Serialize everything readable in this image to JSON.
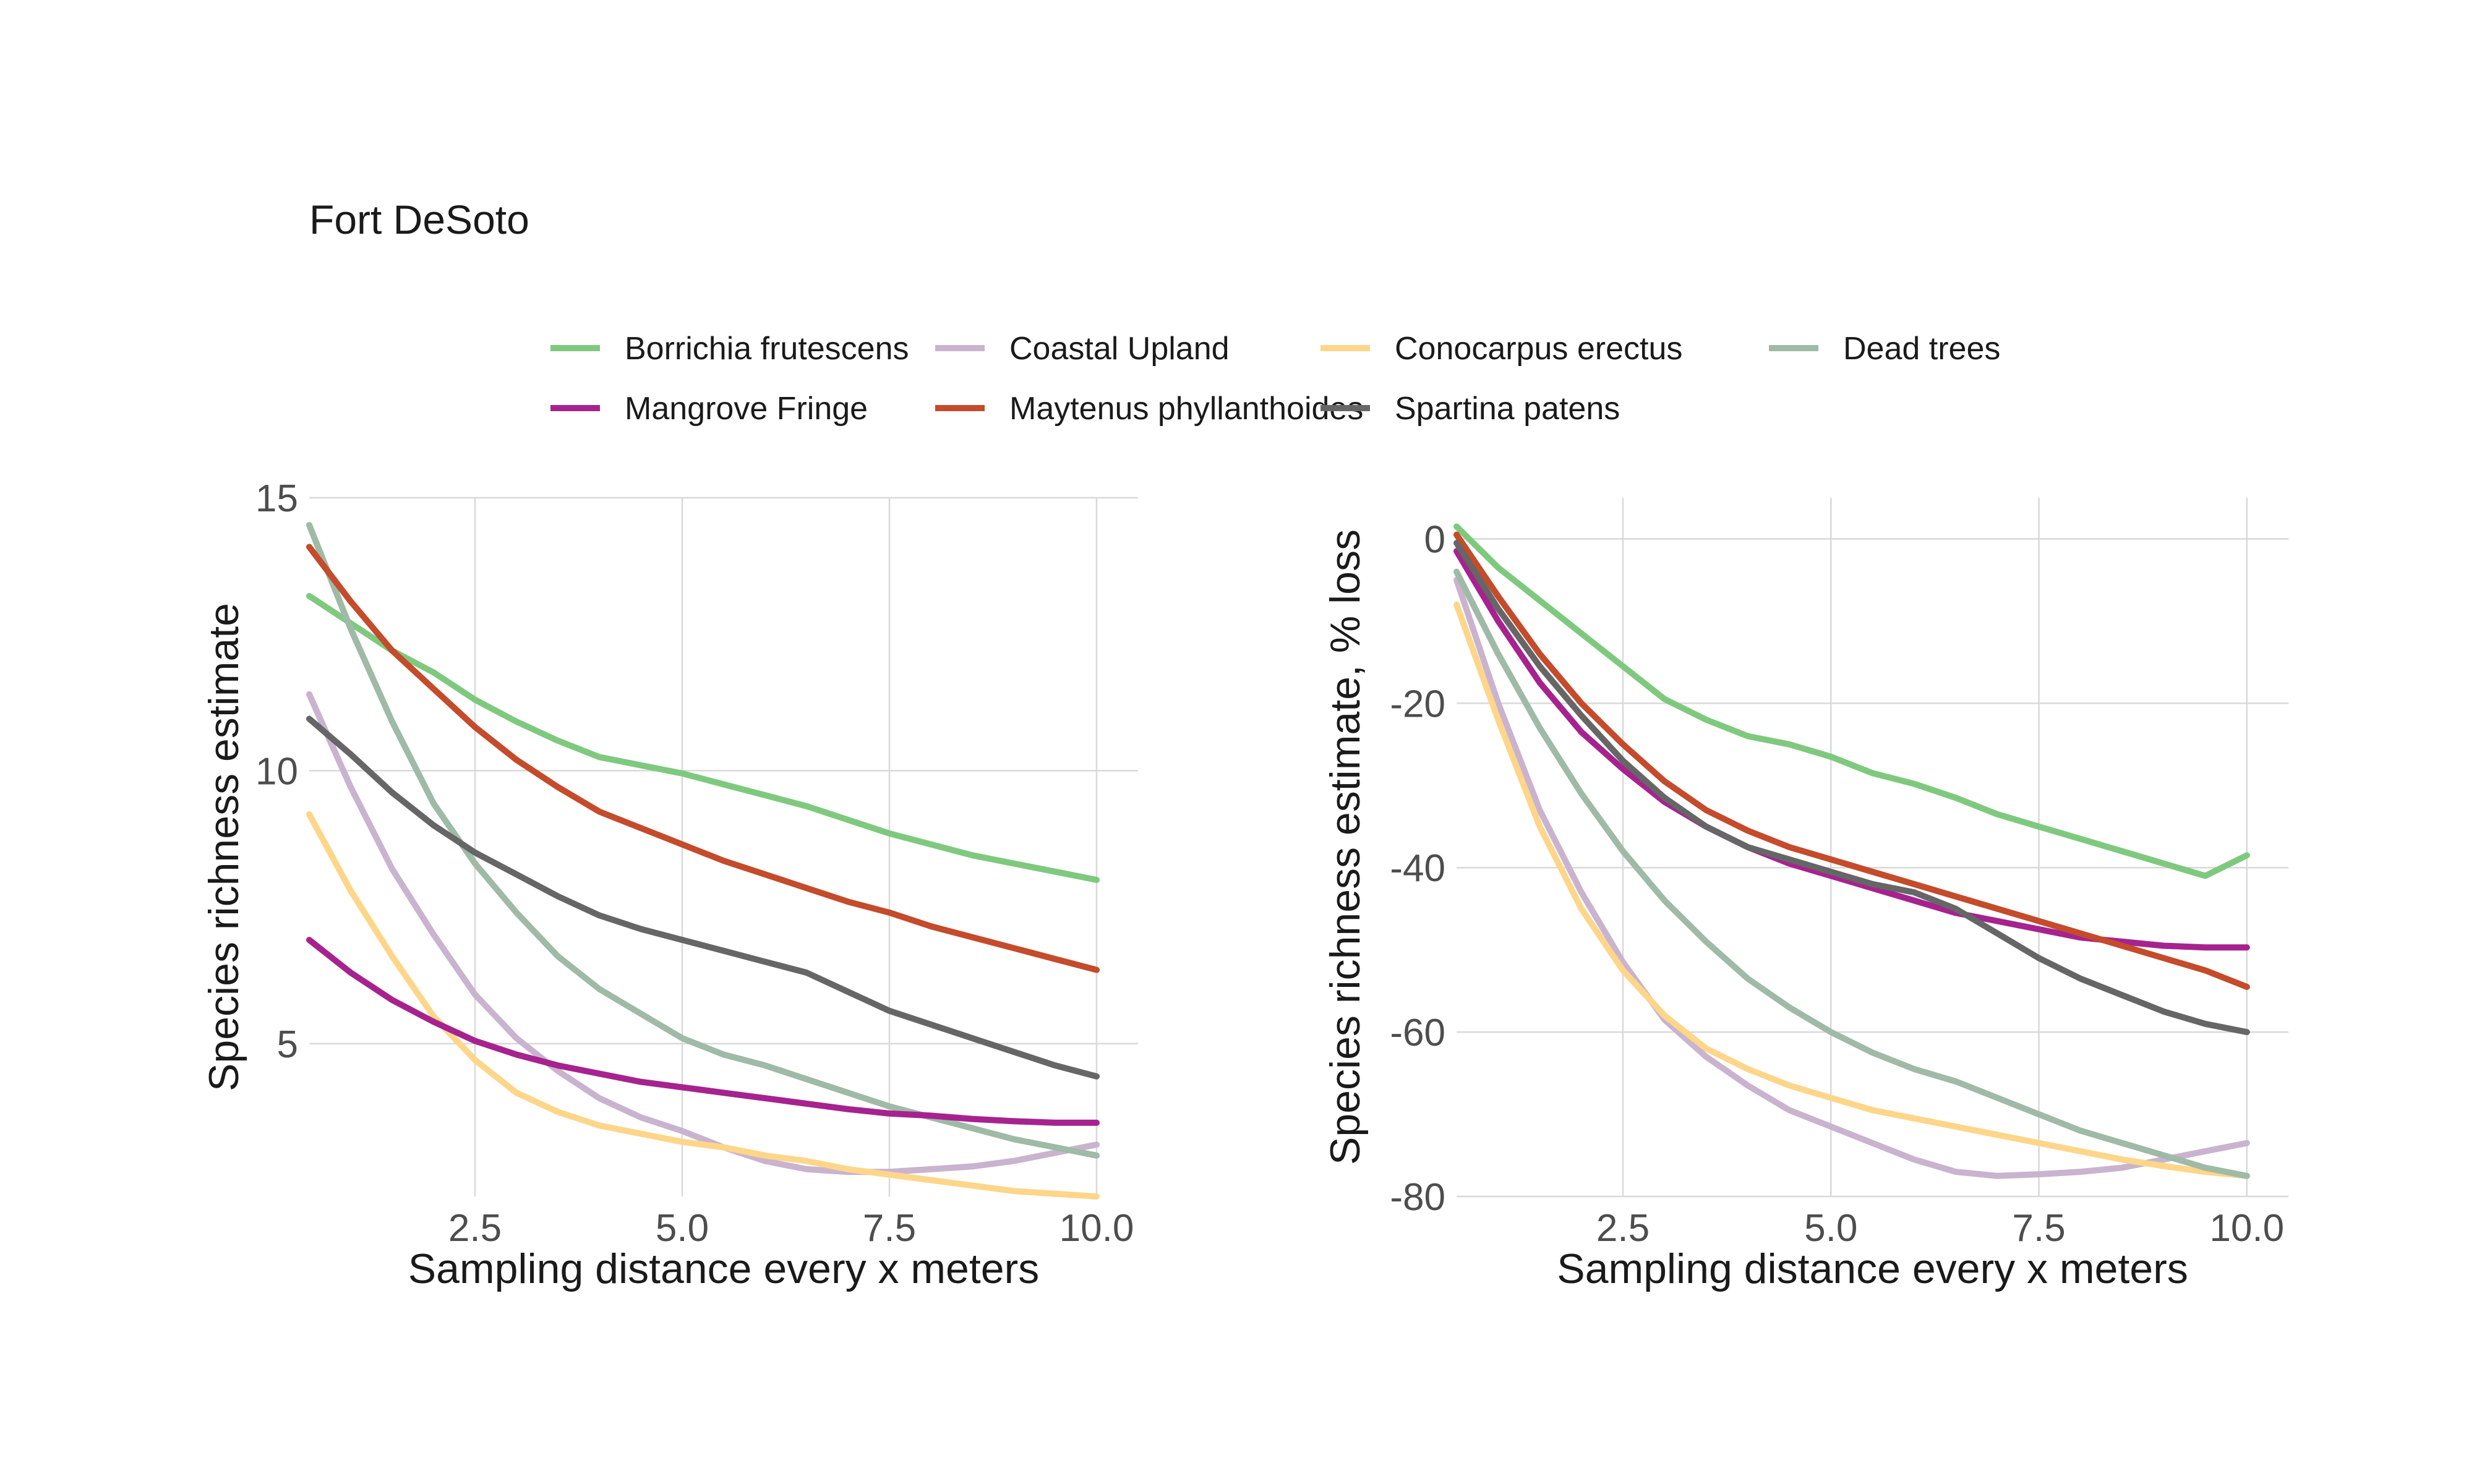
{
  "title": "Fort DeSoto",
  "legend": [
    {
      "name": "Borrichia frutescens",
      "color": "#7fc97f"
    },
    {
      "name": "Coastal Upland",
      "color": "#c9b3cf"
    },
    {
      "name": "Conocarpus erectus",
      "color": "#fdd68a"
    },
    {
      "name": "Dead trees",
      "color": "#9fbaa6"
    },
    {
      "name": "Mangrove Fringe",
      "color": "#a6238f"
    },
    {
      "name": "Maytenus phyllanthoides",
      "color": "#c44b2b"
    },
    {
      "name": "Spartina patens",
      "color": "#666666"
    }
  ],
  "chart_data": [
    {
      "type": "line",
      "xlabel": "Sampling distance every x meters",
      "ylabel": "Species richness estimate",
      "xlim": [
        0.5,
        10.5
      ],
      "ylim": [
        2.2,
        15
      ],
      "xticks": [
        2.5,
        5.0,
        7.5,
        10.0
      ],
      "xtick_labels": [
        "2.5",
        "5.0",
        "7.5",
        "10.0"
      ],
      "yticks": [
        5,
        10,
        15
      ],
      "ytick_labels": [
        "5",
        "10",
        "15"
      ],
      "x": [
        0.5,
        1,
        1.5,
        2,
        2.5,
        3,
        3.5,
        4,
        4.5,
        5,
        5.5,
        6,
        6.5,
        7,
        7.5,
        8,
        8.5,
        9,
        9.5,
        10
      ],
      "series": [
        {
          "name": "Borrichia frutescens",
          "values": [
            13.2,
            12.7,
            12.2,
            11.8,
            11.3,
            10.9,
            10.55,
            10.25,
            10.1,
            9.95,
            9.75,
            9.55,
            9.35,
            9.1,
            8.85,
            8.65,
            8.45,
            8.3,
            8.15,
            8.0
          ]
        },
        {
          "name": "Coastal Upland",
          "values": [
            11.4,
            9.7,
            8.2,
            7.0,
            5.9,
            5.1,
            4.5,
            4.0,
            3.65,
            3.4,
            3.1,
            2.85,
            2.7,
            2.65,
            2.65,
            2.7,
            2.75,
            2.85,
            3.0,
            3.15
          ]
        },
        {
          "name": "Conocarpus erectus",
          "values": [
            9.2,
            7.8,
            6.6,
            5.5,
            4.7,
            4.1,
            3.75,
            3.5,
            3.35,
            3.2,
            3.1,
            2.95,
            2.85,
            2.7,
            2.6,
            2.5,
            2.4,
            2.3,
            2.25,
            2.2
          ]
        },
        {
          "name": "Dead trees",
          "values": [
            14.5,
            12.6,
            10.9,
            9.4,
            8.3,
            7.4,
            6.6,
            6.0,
            5.55,
            5.1,
            4.8,
            4.6,
            4.35,
            4.1,
            3.85,
            3.65,
            3.45,
            3.25,
            3.1,
            2.95
          ]
        },
        {
          "name": "Mangrove Fringe",
          "values": [
            6.9,
            6.3,
            5.8,
            5.4,
            5.05,
            4.8,
            4.6,
            4.45,
            4.3,
            4.2,
            4.1,
            4.0,
            3.9,
            3.8,
            3.72,
            3.68,
            3.62,
            3.58,
            3.55,
            3.55
          ]
        },
        {
          "name": "Maytenus phyllanthoides",
          "values": [
            14.1,
            13.1,
            12.2,
            11.5,
            10.8,
            10.2,
            9.7,
            9.25,
            8.95,
            8.65,
            8.35,
            8.1,
            7.85,
            7.6,
            7.4,
            7.15,
            6.95,
            6.75,
            6.55,
            6.35
          ]
        },
        {
          "name": "Spartina patens",
          "values": [
            10.95,
            10.3,
            9.6,
            9.0,
            8.5,
            8.1,
            7.7,
            7.35,
            7.1,
            6.9,
            6.7,
            6.5,
            6.3,
            5.95,
            5.6,
            5.35,
            5.1,
            4.85,
            4.6,
            4.4
          ]
        }
      ]
    },
    {
      "type": "line",
      "xlabel": "Sampling distance every x meters",
      "ylabel": "Species richness estimate, % loss",
      "xlim": [
        0.5,
        10.5
      ],
      "ylim": [
        -80,
        5
      ],
      "xticks": [
        2.5,
        5.0,
        7.5,
        10.0
      ],
      "xtick_labels": [
        "2.5",
        "5.0",
        "7.5",
        "10.0"
      ],
      "yticks": [
        0,
        -20,
        -40,
        -60,
        -80
      ],
      "ytick_labels": [
        "0",
        "-20",
        "-40",
        "-60",
        "-80"
      ],
      "x": [
        0.5,
        1,
        1.5,
        2,
        2.5,
        3,
        3.5,
        4,
        4.5,
        5,
        5.5,
        6,
        6.5,
        7,
        7.5,
        8,
        8.5,
        9,
        9.5,
        10
      ],
      "series": [
        {
          "name": "Borrichia frutescens",
          "values": [
            1.5,
            -3.5,
            -7.5,
            -11.5,
            -15.5,
            -19.5,
            -22.0,
            -24.0,
            -25.0,
            -26.5,
            -28.5,
            -29.8,
            -31.5,
            -33.5,
            -35.0,
            -36.5,
            -38.0,
            -39.5,
            -41.0,
            -38.5
          ]
        },
        {
          "name": "Coastal Upland",
          "values": [
            -5.0,
            -20.0,
            -33.0,
            -43.0,
            -51.5,
            -58.5,
            -63.0,
            -66.5,
            -69.5,
            -71.5,
            -73.5,
            -75.5,
            -77.0,
            -77.5,
            -77.3,
            -77.0,
            -76.5,
            -75.5,
            -74.5,
            -73.5
          ]
        },
        {
          "name": "Conocarpus erectus",
          "values": [
            -8.0,
            -22.0,
            -35.0,
            -45.0,
            -52.5,
            -58.0,
            -62.0,
            -64.5,
            -66.5,
            -68.0,
            -69.5,
            -70.5,
            -71.5,
            -72.5,
            -73.5,
            -74.5,
            -75.5,
            -76.3,
            -77.0,
            -77.5
          ]
        },
        {
          "name": "Dead trees",
          "values": [
            -4.0,
            -14.0,
            -23.0,
            -31.0,
            -38.0,
            -44.0,
            -49.0,
            -53.5,
            -57.0,
            -60.0,
            -62.5,
            -64.5,
            -66.0,
            -68.0,
            -70.0,
            -72.0,
            -73.5,
            -75.0,
            -76.5,
            -77.5
          ]
        },
        {
          "name": "Mangrove Fringe",
          "values": [
            -1.5,
            -10.0,
            -17.5,
            -23.5,
            -28.0,
            -32.0,
            -35.0,
            -37.5,
            -39.5,
            -41.0,
            -42.5,
            -44.0,
            -45.5,
            -46.5,
            -47.5,
            -48.5,
            -49.0,
            -49.5,
            -49.7,
            -49.7
          ]
        },
        {
          "name": "Maytenus phyllanthoides",
          "values": [
            0.5,
            -7.0,
            -14.0,
            -20.0,
            -25.0,
            -29.5,
            -33.0,
            -35.5,
            -37.5,
            -39.0,
            -40.5,
            -42.0,
            -43.5,
            -45.0,
            -46.5,
            -48.0,
            -49.5,
            -51.0,
            -52.5,
            -54.5
          ]
        },
        {
          "name": "Spartina patens",
          "values": [
            -0.5,
            -8.5,
            -15.5,
            -21.5,
            -27.0,
            -31.5,
            -35.0,
            -37.5,
            -39.0,
            -40.5,
            -42.0,
            -43.0,
            -45.0,
            -48.0,
            -51.0,
            -53.5,
            -55.5,
            -57.5,
            -59.0,
            -60.0
          ]
        }
      ]
    }
  ]
}
